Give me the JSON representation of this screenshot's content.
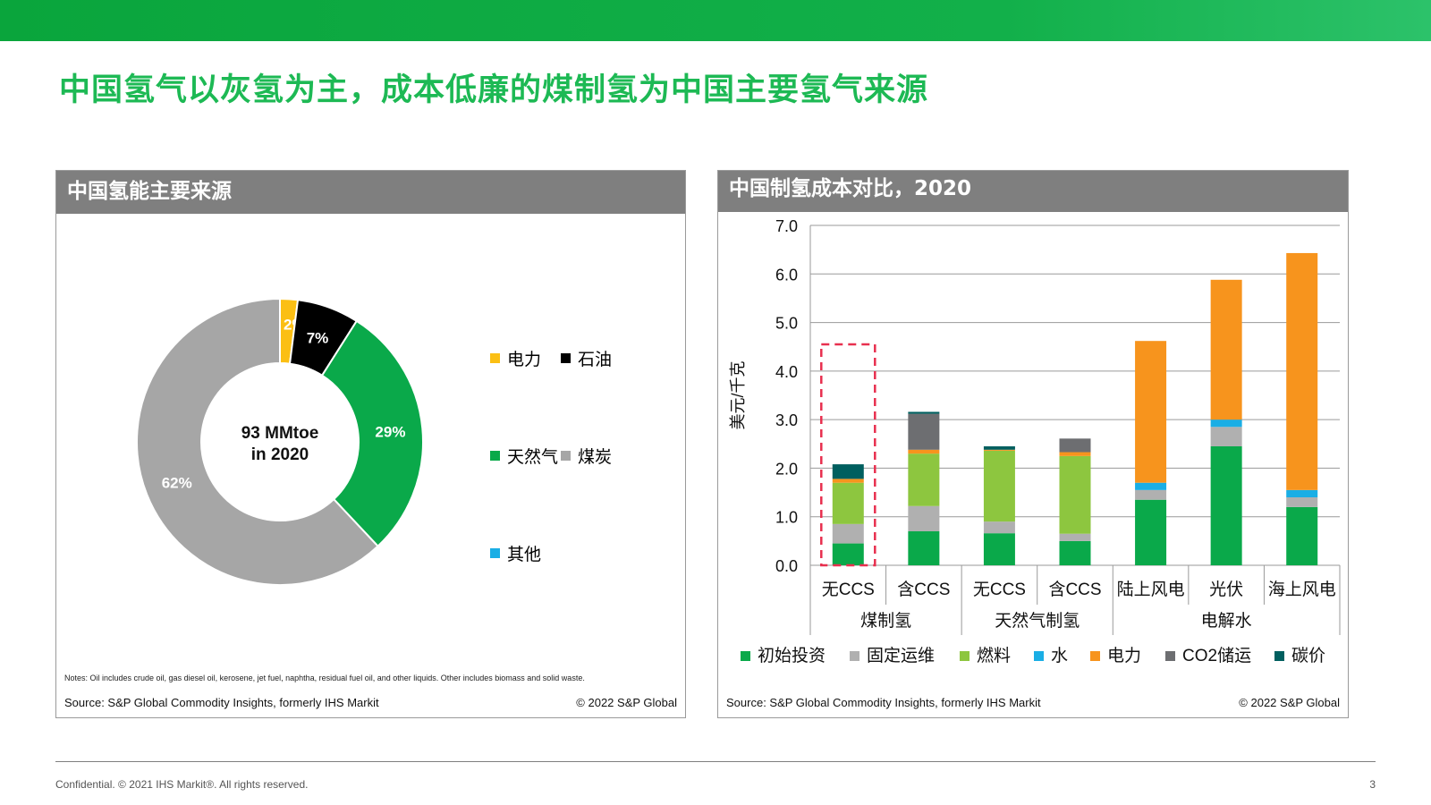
{
  "slide": {
    "title": "中国氢气以灰氢为主，成本低廉的煤制氢为中国主要氢气来源",
    "footer": "Confidential. © 2021 IHS Markit®. All rights reserved.",
    "page_number": "3"
  },
  "left_panel": {
    "header": "中国氢能主要来源",
    "center_line1": "93 MMtoe",
    "center_line2": "in 2020",
    "legend": [
      {
        "label": "电力",
        "color": "#fbbf14"
      },
      {
        "label": "石油",
        "color": "#000000"
      },
      {
        "label": "天然气",
        "color": "#0aa94a"
      },
      {
        "label": "煤炭",
        "color": "#a6a6a6"
      },
      {
        "label": "其他",
        "color": "#1aaee5"
      }
    ],
    "notes": "Notes: Oil includes crude oil, gas diesel oil, kerosene, jet fuel, naphtha, residual fuel oil, and other liquids. Other includes biomass and solid waste.",
    "source": "Source: S&P Global Commodity Insights, formerly IHS Markit",
    "copyright": "© 2022 S&P Global"
  },
  "right_panel": {
    "header": "中国制氢成本对比，2020",
    "source": "Source: S&P Global Commodity Insights, formerly IHS Markit",
    "copyright": "© 2022 S&P Global"
  },
  "chart_data": [
    {
      "type": "pie",
      "title": "中国氢能主要来源",
      "categories": [
        "电力",
        "石油",
        "天然气",
        "煤炭",
        "其他"
      ],
      "values": [
        2,
        7,
        29,
        62,
        0
      ],
      "labels": [
        "2%",
        "7%",
        "29%",
        "62%",
        ""
      ],
      "colors": [
        "#fbbf14",
        "#000000",
        "#0aa94a",
        "#a6a6a6",
        "#1aaee5"
      ]
    },
    {
      "type": "bar",
      "stacked": true,
      "title": "中国制氢成本对比，2020",
      "ylabel": "美元/千克",
      "ylim": [
        0,
        7
      ],
      "yticks": [
        "0.0",
        "1.0",
        "2.0",
        "3.0",
        "4.0",
        "5.0",
        "6.0",
        "7.0"
      ],
      "categories": [
        "无CCS",
        "含CCS",
        "无CCS",
        "含CCS",
        "陆上风电",
        "光伏",
        "海上风电"
      ],
      "groups": [
        {
          "label": "煤制氢",
          "count": 2
        },
        {
          "label": "天然气制氢",
          "count": 2
        },
        {
          "label": "电解水",
          "count": 3
        }
      ],
      "series": [
        {
          "name": "初始投资",
          "color": "#0aa94a",
          "values": [
            0.45,
            0.7,
            0.66,
            0.5,
            1.35,
            2.45,
            1.2
          ]
        },
        {
          "name": "固定运维",
          "color": "#b0b0b0",
          "values": [
            0.4,
            0.52,
            0.24,
            0.15,
            0.2,
            0.4,
            0.2
          ]
        },
        {
          "name": "燃料",
          "color": "#8dc63f",
          "values": [
            0.85,
            1.08,
            1.46,
            1.6,
            0,
            0,
            0
          ]
        },
        {
          "name": "水",
          "color": "#1aaee5",
          "values": [
            0,
            0,
            0,
            0,
            0.15,
            0.15,
            0.15
          ]
        },
        {
          "name": "电力",
          "color": "#f7941d",
          "values": [
            0.08,
            0.08,
            0.02,
            0.08,
            2.92,
            2.88,
            4.88
          ]
        },
        {
          "name": "CO2储运",
          "color": "#6d6e71",
          "values": [
            0,
            0.74,
            0,
            0.28,
            0,
            0,
            0
          ]
        },
        {
          "name": "碳价",
          "color": "#005f5f",
          "values": [
            0.3,
            0.04,
            0.07,
            0,
            0,
            0,
            0
          ]
        }
      ],
      "highlight_category_index": 0
    }
  ]
}
